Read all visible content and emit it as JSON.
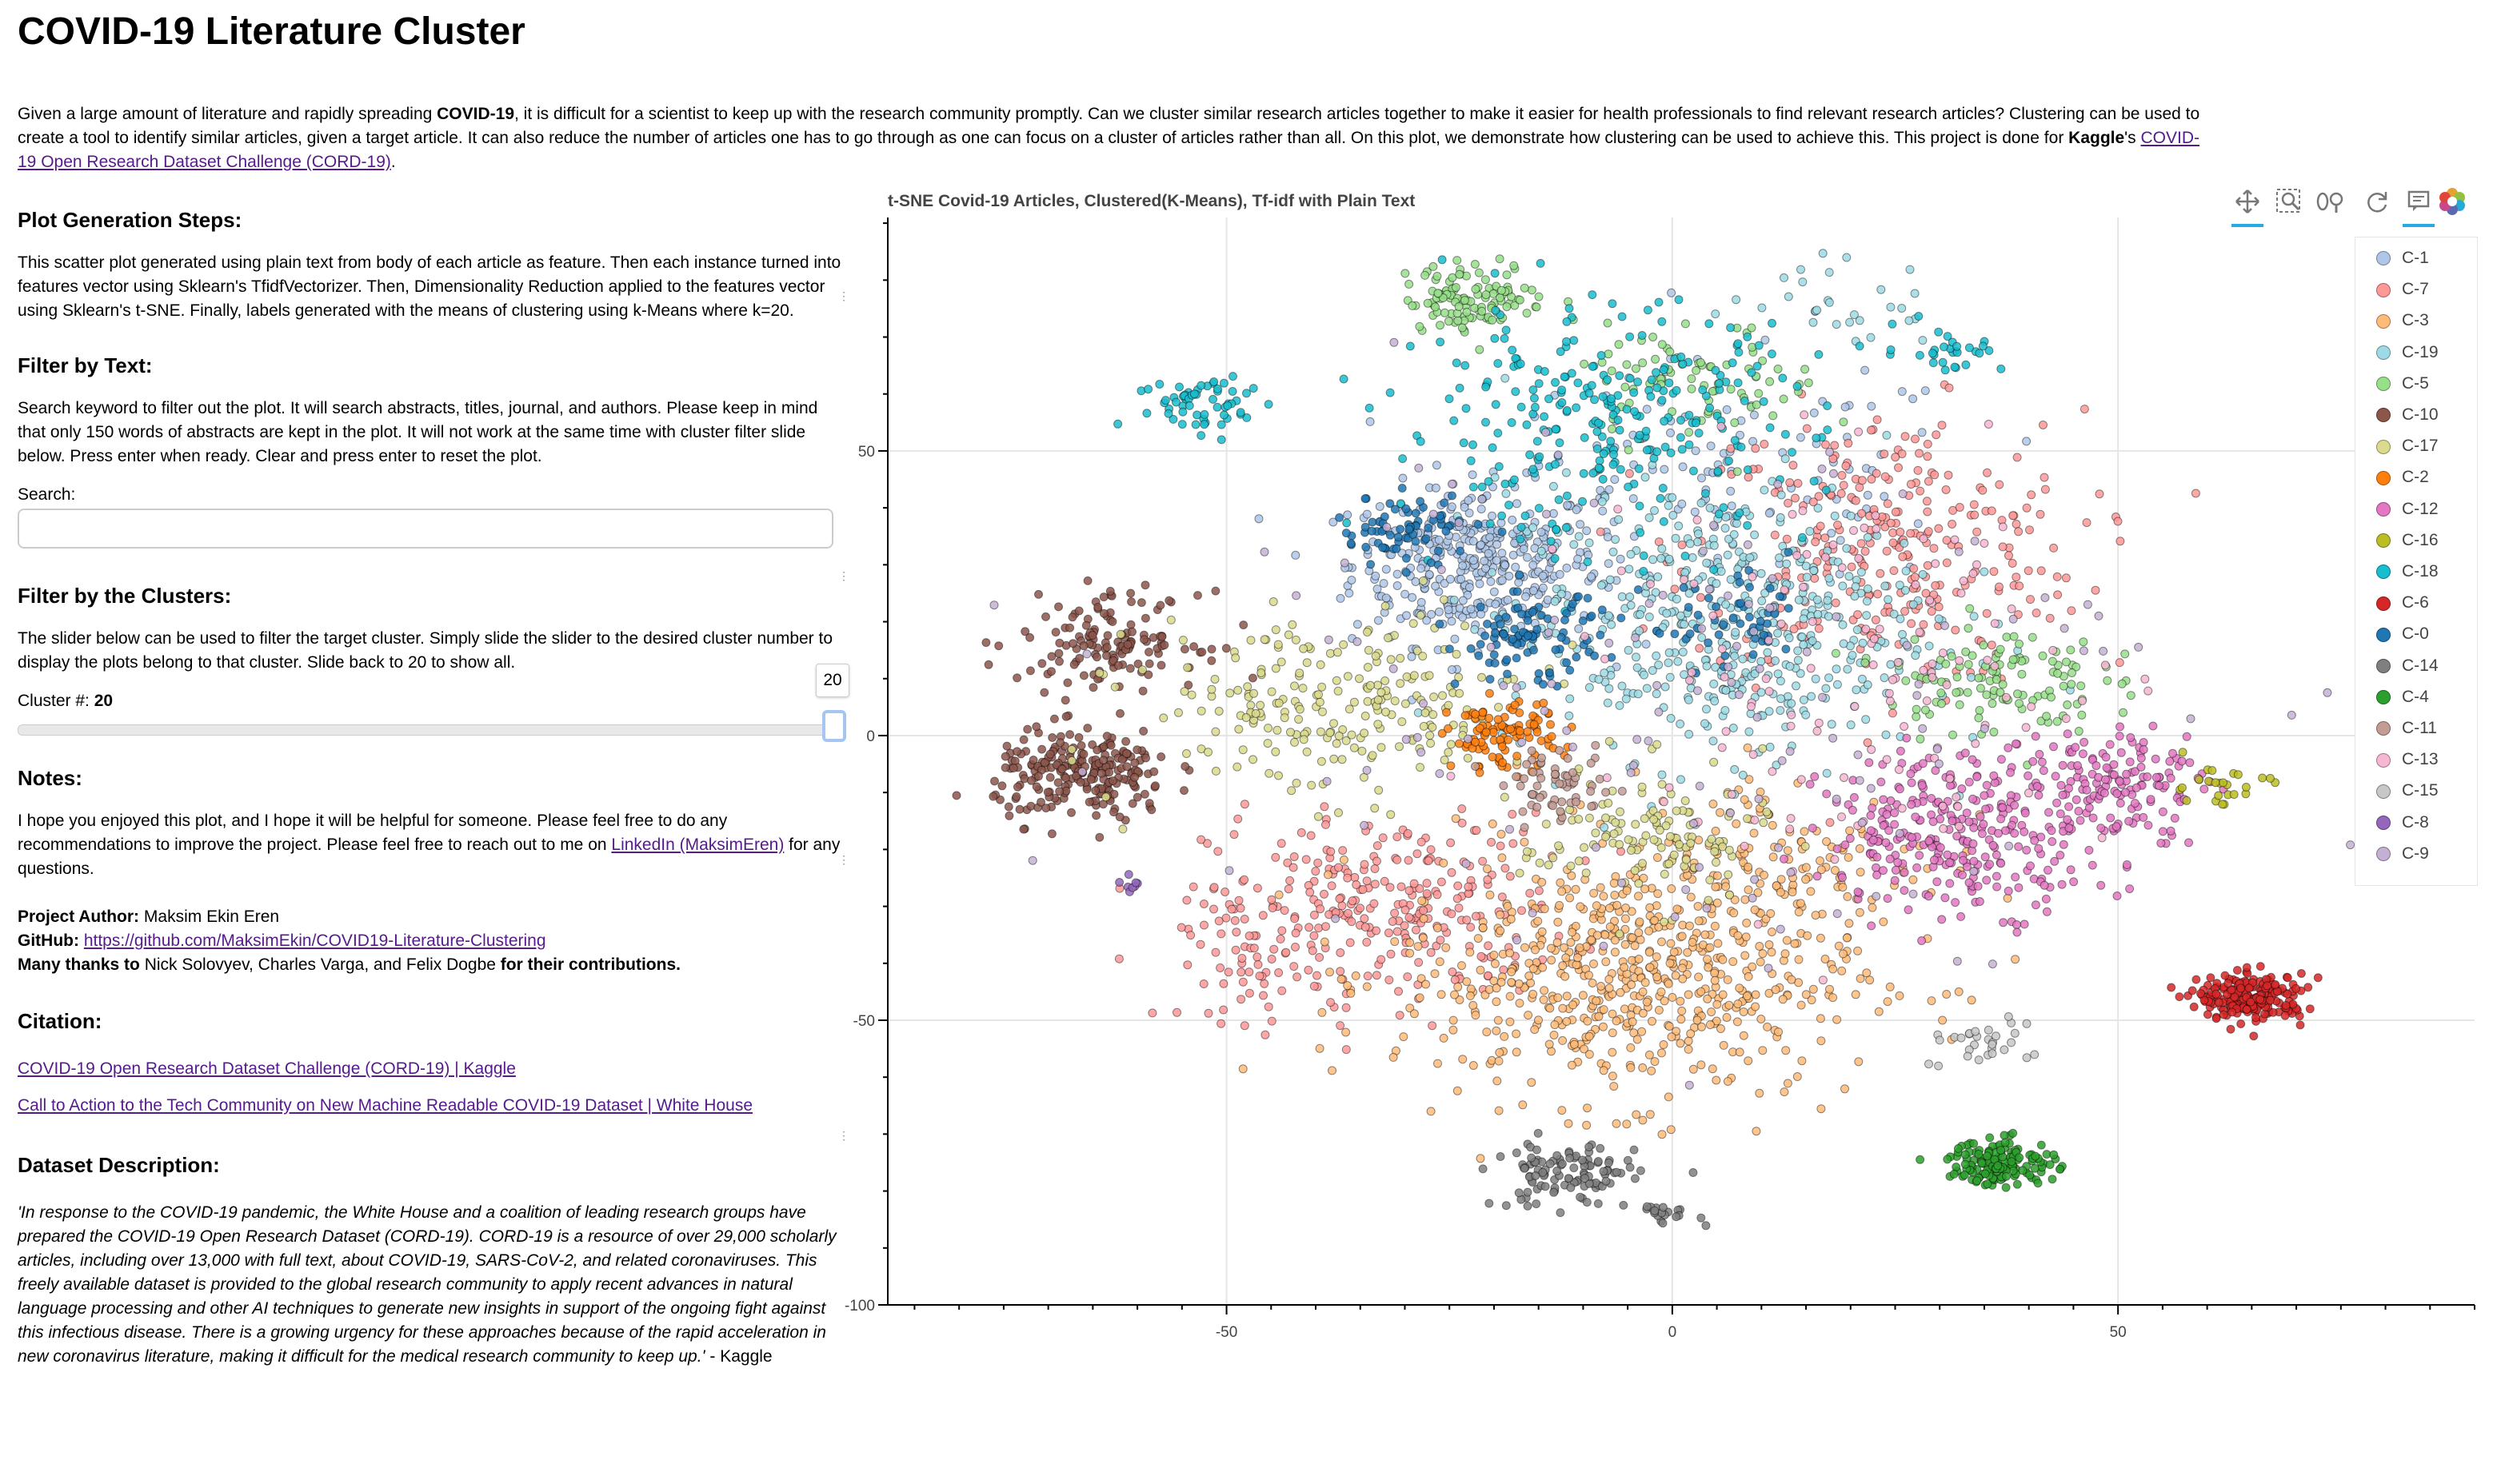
{
  "title": "COVID-19 Literature Cluster",
  "intro": {
    "t1": "Given a large amount of literature and rapidly spreading ",
    "b1": "COVID-19",
    "t2": ", it is difficult for a scientist to keep up with the research community promptly. Can we cluster similar research articles together to make it easier for health professionals to find relevant research articles? Clustering can be used to create a tool to identify similar articles, given a target article. It can also reduce the number of articles one has to go through as one can focus on a cluster of articles rather than all. On this plot, we demonstrate how clustering can be used to achieve this. This project is done for ",
    "b2": "Kaggle",
    "t3": "'s ",
    "link": "COVID-19 Open Research Dataset Challenge (CORD-19)",
    "t4": "."
  },
  "steps": {
    "heading": "Plot Generation Steps:",
    "text": "This scatter plot generated using plain text from body of each article as feature. Then each instance turned into features vector using Sklearn's TfidfVectorizer. Then, Dimensionality Reduction applied to the features vector using Sklearn's t-SNE. Finally, labels generated with the means of clustering using k-Means where k=20."
  },
  "filter_text": {
    "heading": "Filter by Text:",
    "text": "Search keyword to filter out the plot. It will search abstracts, titles, journal, and authors. Please keep in mind that only 150 words of abstracts are kept in the plot. It will not work at the same time with cluster filter slide below. Press enter when ready. Clear and press enter to reset the plot.",
    "search_label": "Search:",
    "search_value": ""
  },
  "filter_cluster": {
    "heading": "Filter by the Clusters:",
    "text": "The slider below can be used to filter the target cluster. Simply slide the slider to the desired cluster number to display the plots belong to that cluster. Slide back to 20 to show all.",
    "label": "Cluster #: ",
    "value": "20",
    "slider_fraction": 1.0
  },
  "notes": {
    "heading": "Notes:",
    "text1": "I hope you enjoyed this plot, and I hope it will be helpful for someone. Please feel free to do any recommendations to improve the project. Please feel free to reach out to me on ",
    "link": "LinkedIn (MaksimEren)",
    "text2": " for any questions.",
    "author_label": "Project Author:",
    "author": " Maksim Ekin Eren",
    "github_label": "GitHub:",
    "github_link": "https://github.com/MaksimEkin/COVID19-Literature-Clustering",
    "thanks_label": "Many thanks to",
    "thanks_names": " Nick Solovyev, Charles Varga, and Felix Dogbe ",
    "thanks_end": "for their contributions."
  },
  "citation": {
    "heading": "Citation:",
    "link1": "COVID-19 Open Research Dataset Challenge (CORD-19) | Kaggle",
    "link2": "Call to Action to the Tech Community on New Machine Readable COVID-19 Dataset | White House"
  },
  "dataset": {
    "heading": "Dataset Description:",
    "quote": "'In response to the COVID-19 pandemic, the White House and a coalition of leading research groups have prepared the COVID-19 Open Research Dataset (CORD-19). CORD-19 is a resource of over 29,000 scholarly articles, including over 13,000 with full text, about COVID-19, SARS-CoV-2, and related coronaviruses. This freely available dataset is provided to the global research community to apply recent advances in natural language processing and other AI techniques to generate new insights in support of the ongoing fight against this infectious disease. There is a growing urgency for these approaches because of the rapid acceleration in new coronavirus literature, making it difficult for the medical research community to keep up.'",
    "source": " - Kaggle"
  },
  "toolbar": {
    "icons": [
      "pan-icon",
      "box-zoom-icon",
      "wheel-zoom-icon",
      "reset-icon",
      "hover-icon",
      "bokeh-logo-icon"
    ]
  },
  "chart_data": {
    "type": "scatter",
    "title": "t-SNE Covid-19 Articles, Clustered(K-Means), Tf-idf with Plain Text",
    "xlabel": "",
    "ylabel": "",
    "xlim": [
      -88,
      90
    ],
    "ylim": [
      -100,
      91
    ],
    "xticks": [
      "-50",
      "0",
      "50"
    ],
    "xtick_values": [
      -50,
      0,
      50
    ],
    "yticks": [
      "50",
      "0",
      "-50",
      "-100"
    ],
    "ytick_values": [
      50,
      0,
      -50,
      -100
    ],
    "legend_position": "top-right",
    "series": [
      {
        "name": "C-1",
        "color": "#aec7e8",
        "clusters": [
          {
            "x": -22,
            "y": 30,
            "sx": 7,
            "sy": 7,
            "n": 360
          },
          {
            "x": 6,
            "y": 45,
            "sx": 14,
            "sy": 10,
            "n": 120
          }
        ]
      },
      {
        "name": "C-7",
        "color": "#ff9896",
        "clusters": [
          {
            "x": 24,
            "y": 33,
            "sx": 11,
            "sy": 12,
            "n": 300
          },
          {
            "x": -32,
            "y": -30,
            "sx": 10,
            "sy": 8,
            "n": 280
          },
          {
            "x": -47,
            "y": -40,
            "sx": 4,
            "sy": 5,
            "n": 60
          }
        ]
      },
      {
        "name": "C-3",
        "color": "#ffbb78",
        "clusters": [
          {
            "x": -5,
            "y": -42,
            "sx": 13,
            "sy": 11,
            "n": 640
          },
          {
            "x": 13,
            "y": -22,
            "sx": 9,
            "sy": 8,
            "n": 120
          }
        ]
      },
      {
        "name": "C-19",
        "color": "#9edae5",
        "clusters": [
          {
            "x": 5,
            "y": 20,
            "sx": 12,
            "sy": 12,
            "n": 500
          },
          {
            "x": 18,
            "y": 76,
            "sx": 6,
            "sy": 4,
            "n": 30
          }
        ]
      },
      {
        "name": "C-5",
        "color": "#98df8a",
        "clusters": [
          {
            "x": -22,
            "y": 77,
            "sx": 4,
            "sy": 3,
            "n": 120
          },
          {
            "x": 36,
            "y": 10,
            "sx": 6,
            "sy": 5,
            "n": 120
          },
          {
            "x": 3,
            "y": 62,
            "sx": 7,
            "sy": 5,
            "n": 80
          }
        ]
      },
      {
        "name": "C-10",
        "color": "#8c564b",
        "clusters": [
          {
            "x": -66,
            "y": -7,
            "sx": 5,
            "sy": 4,
            "n": 240
          },
          {
            "x": -63,
            "y": 17,
            "sx": 5,
            "sy": 4,
            "n": 140
          }
        ]
      },
      {
        "name": "C-17",
        "color": "#dbdb8d",
        "clusters": [
          {
            "x": -37,
            "y": 5,
            "sx": 11,
            "sy": 8,
            "n": 240
          },
          {
            "x": -3,
            "y": -18,
            "sx": 7,
            "sy": 6,
            "n": 120
          }
        ]
      },
      {
        "name": "C-2",
        "color": "#ff7f0e",
        "clusters": [
          {
            "x": -19,
            "y": 0,
            "sx": 3,
            "sy": 3,
            "n": 100
          }
        ]
      },
      {
        "name": "C-12",
        "color": "#e377c2",
        "clusters": [
          {
            "x": 33,
            "y": -17,
            "sx": 8,
            "sy": 7,
            "n": 300
          },
          {
            "x": 50,
            "y": -8,
            "sx": 5,
            "sy": 5,
            "n": 140
          }
        ]
      },
      {
        "name": "C-16",
        "color": "#bcbd22",
        "clusters": [
          {
            "x": 61,
            "y": -9,
            "sx": 3,
            "sy": 2,
            "n": 25
          }
        ]
      },
      {
        "name": "C-18",
        "color": "#17becf",
        "clusters": [
          {
            "x": -8,
            "y": 55,
            "sx": 12,
            "sy": 10,
            "n": 280
          },
          {
            "x": -52,
            "y": 58,
            "sx": 4,
            "sy": 3,
            "n": 60
          },
          {
            "x": 31,
            "y": 68,
            "sx": 3,
            "sy": 2,
            "n": 30
          }
        ]
      },
      {
        "name": "C-6",
        "color": "#d62728",
        "clusters": [
          {
            "x": 65,
            "y": -46,
            "sx": 3,
            "sy": 2,
            "n": 220
          }
        ]
      },
      {
        "name": "C-0",
        "color": "#1f77b4",
        "clusters": [
          {
            "x": -30,
            "y": 36,
            "sx": 4,
            "sy": 3,
            "n": 70
          },
          {
            "x": -16,
            "y": 17,
            "sx": 4,
            "sy": 4,
            "n": 90
          },
          {
            "x": 7,
            "y": 19,
            "sx": 5,
            "sy": 4,
            "n": 50
          }
        ]
      },
      {
        "name": "C-14",
        "color": "#7f7f7f",
        "clusters": [
          {
            "x": -12,
            "y": -77,
            "sx": 4,
            "sy": 3,
            "n": 110
          },
          {
            "x": -1,
            "y": -84,
            "sx": 2,
            "sy": 1,
            "n": 20
          }
        ]
      },
      {
        "name": "C-4",
        "color": "#2ca02c",
        "clusters": [
          {
            "x": 37,
            "y": -75,
            "sx": 3,
            "sy": 2,
            "n": 150
          }
        ]
      },
      {
        "name": "C-11",
        "color": "#c49c94",
        "clusters": [
          {
            "x": -13,
            "y": -9,
            "sx": 3,
            "sy": 3,
            "n": 60
          }
        ]
      },
      {
        "name": "C-13",
        "color": "#f7b6d2",
        "clusters": [
          {
            "x": 22,
            "y": 10,
            "sx": 15,
            "sy": 18,
            "n": 130
          }
        ]
      },
      {
        "name": "C-15",
        "color": "#c7c7c7",
        "clusters": [
          {
            "x": 34,
            "y": -54,
            "sx": 3,
            "sy": 2,
            "n": 30
          }
        ]
      },
      {
        "name": "C-8",
        "color": "#9467bd",
        "clusters": [
          {
            "x": -61,
            "y": -26,
            "sx": 1,
            "sy": 1,
            "n": 8
          }
        ]
      },
      {
        "name": "C-9",
        "color": "#c5b0d5",
        "clusters": [
          {
            "x": 0,
            "y": 10,
            "sx": 28,
            "sy": 25,
            "n": 140
          }
        ]
      }
    ]
  }
}
